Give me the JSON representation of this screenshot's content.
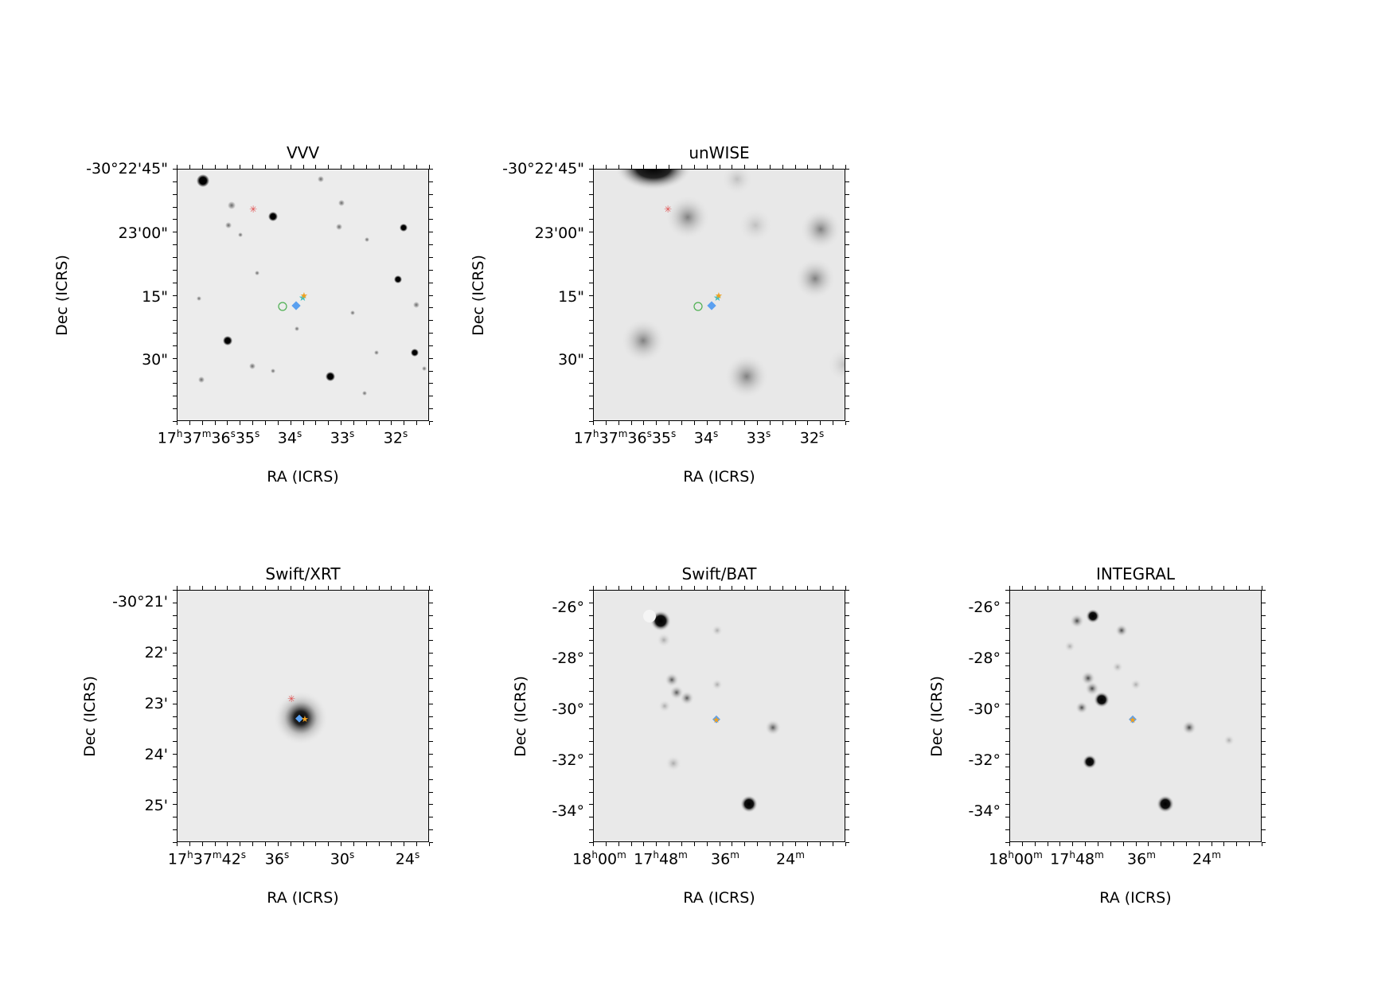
{
  "panels": [
    {
      "id": "vvv",
      "title": "VVV",
      "ylabel": "Dec (ICRS)",
      "xlabel": "RA (ICRS)",
      "yticks": [
        "-30°22'45\"",
        "23'00\"",
        "15\"",
        "30\""
      ],
      "xticks": [
        {
          "h": "17",
          "m": "37",
          "s": "36",
          "tail": "35"
        },
        {
          "s": "34"
        },
        {
          "s": "33"
        },
        {
          "s": "32"
        }
      ]
    },
    {
      "id": "unwise",
      "title": "unWISE",
      "ylabel": "Dec (ICRS)",
      "xlabel": "RA (ICRS)",
      "yticks": [
        "-30°22'45\"",
        "23'00\"",
        "15\"",
        "30\""
      ],
      "xticks": [
        {
          "h": "17",
          "m": "37",
          "s": "36",
          "tail": "35"
        },
        {
          "s": "34"
        },
        {
          "s": "33"
        },
        {
          "s": "32"
        }
      ]
    },
    {
      "id": "xrt",
      "title": "Swift/XRT",
      "ylabel": "Dec (ICRS)",
      "xlabel": "RA (ICRS)",
      "yticks": [
        "-30°21'",
        "22'",
        "23'",
        "24'",
        "25'"
      ],
      "xticks": [
        {
          "h": "17",
          "m": "37",
          "s": "42"
        },
        {
          "s": "36"
        },
        {
          "s": "30"
        },
        {
          "s": "24"
        }
      ]
    },
    {
      "id": "bat",
      "title": "Swift/BAT",
      "ylabel": "Dec (ICRS)",
      "xlabel": "RA (ICRS)",
      "yticks": [
        "-26°",
        "-28°",
        "-30°",
        "-32°",
        "-34°"
      ],
      "xticks": [
        {
          "h": "18",
          "m": "00"
        },
        {
          "h": "17",
          "m": "48"
        },
        {
          "m": "36"
        },
        {
          "m": "24"
        }
      ]
    },
    {
      "id": "integral",
      "title": "INTEGRAL",
      "ylabel": "Dec (ICRS)",
      "xlabel": "RA (ICRS)",
      "yticks": [
        "-26°",
        "-28°",
        "-30°",
        "-32°",
        "-34°"
      ],
      "xticks": [
        {
          "h": "18",
          "m": "00"
        },
        {
          "h": "17",
          "m": "48"
        },
        {
          "m": "36"
        },
        {
          "m": "24"
        }
      ]
    }
  ],
  "marker_colors": {
    "red_cross": "#e05050",
    "orange_star": "#f0a020",
    "cyan_star": "#40c0c0",
    "green_circle": "#4caf50",
    "blue_diamond": "#5aa0f0"
  }
}
